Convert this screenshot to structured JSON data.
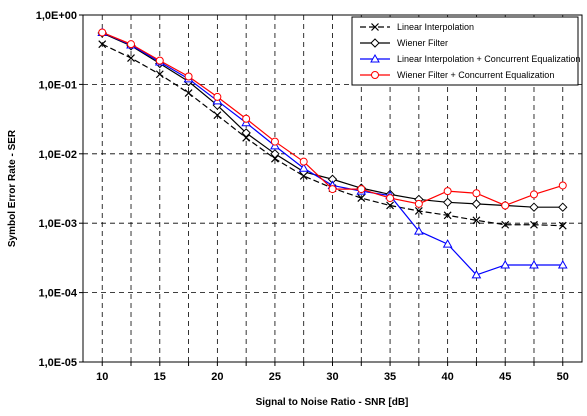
{
  "chart_data": {
    "type": "line",
    "xlabel": "Signal to Noise Ratio - SNR [dB]",
    "ylabel": "Symbol Error Rate - SER",
    "xlim": [
      8.33,
      51.67
    ],
    "ylim": [
      1e-05,
      1
    ],
    "y_scale": "log",
    "grid": true,
    "legend_position": "top-right",
    "x_ticks": [
      10,
      15,
      20,
      25,
      30,
      35,
      40,
      45,
      50
    ],
    "x_tick_labels": [
      "10",
      "15",
      "20",
      "25",
      "30",
      "35",
      "40",
      "45",
      "50"
    ],
    "y_ticks": [
      1e-05,
      0.0001,
      0.001,
      0.01,
      0.1,
      1
    ],
    "y_tick_labels": [
      "1,0E-05",
      "1,0E-04",
      "1,0E-03",
      "1,0E-02",
      "1,0E-01",
      "1,0E+00"
    ],
    "x": [
      10,
      12.5,
      15,
      17.5,
      20,
      22.5,
      25,
      27.5,
      30,
      32.5,
      35,
      37.5,
      40,
      42.5,
      45,
      47.5,
      50
    ],
    "series": [
      {
        "name": "Linear Interpolation",
        "color": "#000000",
        "marker": "x",
        "dashed": true,
        "values": [
          0.38,
          0.24,
          0.14,
          0.075,
          0.036,
          0.017,
          0.0085,
          0.0048,
          0.0032,
          0.0023,
          0.0018,
          0.0015,
          0.0013,
          0.0011,
          0.00095,
          0.00095,
          0.00092
        ]
      },
      {
        "name": "Wiener Filter",
        "color": "#000000",
        "marker": "diamond",
        "dashed": false,
        "values": [
          0.55,
          0.36,
          0.2,
          0.11,
          0.05,
          0.02,
          0.01,
          0.0055,
          0.0043,
          0.0032,
          0.0026,
          0.0022,
          0.002,
          0.0019,
          0.0018,
          0.0017,
          0.0017
        ]
      },
      {
        "name": "Linear Interpolation + Concurrent Equalization",
        "color": "#0000ff",
        "marker": "triangle",
        "dashed": false,
        "values": [
          0.56,
          0.37,
          0.21,
          0.12,
          0.058,
          0.028,
          0.013,
          0.0062,
          0.0035,
          0.0029,
          0.0025,
          0.00077,
          0.0005,
          0.00018,
          0.00025,
          0.00025,
          0.00025
        ]
      },
      {
        "name": "Wiener Filter + Concurrent Equalization",
        "color": "#ff0000",
        "marker": "circle",
        "dashed": false,
        "values": [
          0.56,
          0.38,
          0.22,
          0.13,
          0.066,
          0.032,
          0.015,
          0.0077,
          0.0031,
          0.0031,
          0.0023,
          0.0019,
          0.0029,
          0.0027,
          0.0018,
          0.0026,
          0.0035
        ]
      }
    ]
  }
}
